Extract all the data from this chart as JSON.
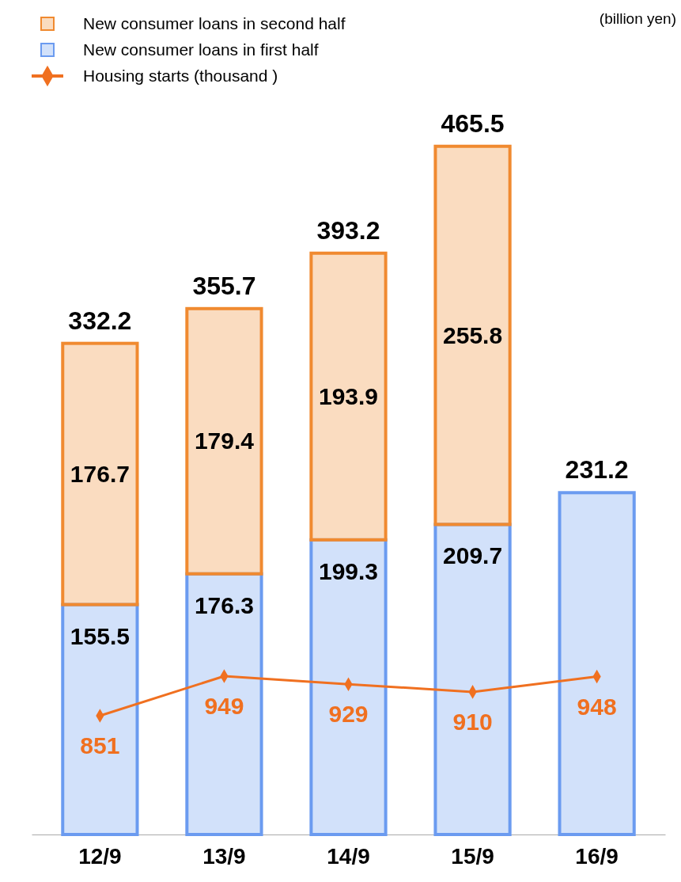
{
  "chart_data": {
    "type": "bar",
    "stacked": true,
    "categories": [
      "12/9",
      "13/9",
      "14/9",
      "15/9",
      "16/9"
    ],
    "series": [
      {
        "name": "New consumer loans in first half",
        "color": "#6b9bf0",
        "values": [
          155.5,
          176.3,
          199.3,
          209.7,
          231.2
        ],
        "value_labels": [
          "155.5",
          "176.3",
          "199.3",
          "209.7",
          null
        ]
      },
      {
        "name": "New consumer loans in second half",
        "color": "#f08a30",
        "values": [
          176.7,
          179.4,
          193.9,
          255.8,
          null
        ],
        "value_labels": [
          "176.7",
          "179.4",
          "193.9",
          "255.8",
          null
        ]
      },
      {
        "name": "Housing starts (thousand )",
        "type": "line",
        "axis": "y2",
        "color": "#f07020",
        "marker": "diamond",
        "values": [
          851,
          949,
          929,
          910,
          948
        ],
        "value_labels": [
          "851",
          "949",
          "929",
          "910",
          "948"
        ]
      }
    ],
    "tick_labels": "x",
    "totals": [
      "332.2",
      "355.7",
      "393.2",
      "465.5",
      "231.2"
    ],
    "legend": "top left",
    "annotations": [
      "(billion yen)"
    ]
  }
}
